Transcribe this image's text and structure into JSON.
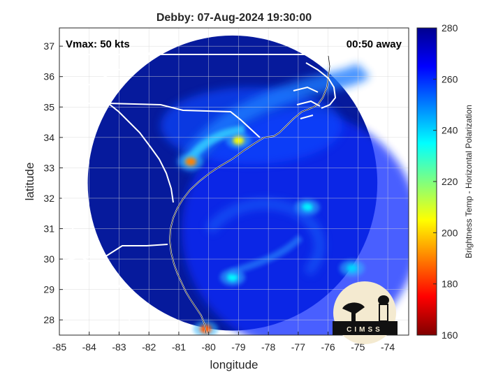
{
  "title": "Debby: 07-Aug-2024 19:30:00",
  "annotations": {
    "vmax": "Vmax: 50 kts",
    "time_away": "00:50 away"
  },
  "axes": {
    "xlabel": "longitude",
    "ylabel": "latitude",
    "xlim": [
      -85,
      -73.3
    ],
    "ylim": [
      27.5,
      37.6
    ],
    "xticks": [
      "-85",
      "-84",
      "-83",
      "-82",
      "-81",
      "-80",
      "-79",
      "-78",
      "-77",
      "-76",
      "-75",
      "-74"
    ],
    "xtick_values": [
      -85,
      -84,
      -83,
      -82,
      -81,
      -80,
      -79,
      -78,
      -77,
      -76,
      -75,
      -74
    ],
    "yticks": [
      "28",
      "29",
      "30",
      "31",
      "32",
      "33",
      "34",
      "35",
      "36",
      "37"
    ],
    "ytick_values": [
      28,
      29,
      30,
      31,
      32,
      33,
      34,
      35,
      36,
      37
    ],
    "grid": true
  },
  "colorbar": {
    "label": "Brightness Temp - Horizontal Polarization",
    "ticks": [
      "280",
      "260",
      "240",
      "220",
      "200",
      "180",
      "160"
    ],
    "tick_values": [
      280,
      260,
      240,
      220,
      200,
      180,
      160
    ],
    "range": [
      160,
      280
    ],
    "colormap": "jet-reversed"
  },
  "logo": {
    "text": "CIMSS"
  },
  "chart_data": {
    "type": "heatmap",
    "title": "Debby: 07-Aug-2024 19:30:00",
    "xlabel": "longitude",
    "ylabel": "latitude",
    "xlim": [
      -85,
      -73.3
    ],
    "ylim": [
      27.5,
      37.6
    ],
    "value_range": [
      160,
      280
    ],
    "swath": {
      "center": [
        -79.2,
        32.5
      ],
      "radius_deg": 4.85,
      "background_value": 268
    },
    "features": [
      {
        "name": "main rainband",
        "lat": 33.2,
        "lon": -80.6,
        "value": 190
      },
      {
        "name": "band near Myrtle Beach",
        "lat": 33.9,
        "lon": -79.0,
        "value": 205
      },
      {
        "name": "Florida coast cell",
        "lat": 27.7,
        "lon": -80.1,
        "value": 185
      },
      {
        "name": "offshore cell",
        "lat": 31.7,
        "lon": -76.7,
        "value": 235
      },
      {
        "name": "offshore cell south",
        "lat": 29.4,
        "lon": -79.2,
        "value": 235
      },
      {
        "name": "eastern cell",
        "lat": 29.7,
        "lon": -75.2,
        "value": 240
      }
    ]
  }
}
